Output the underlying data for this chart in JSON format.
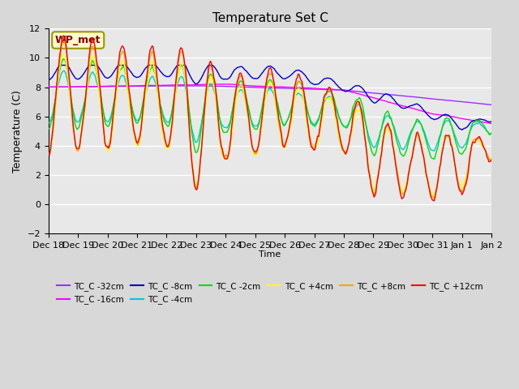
{
  "title": "Temperature Set C",
  "xlabel": "Time",
  "ylabel": "Temperature (C)",
  "ylim": [
    -2,
    12
  ],
  "xtick_labels": [
    "Dec 18",
    "Dec 19",
    "Dec 20",
    "Dec 21",
    "Dec 22",
    "Dec 23",
    "Dec 24",
    "Dec 25",
    "Dec 26",
    "Dec 27",
    "Dec 28",
    "Dec 29",
    "Dec 30",
    "Dec 31",
    "Jan 1",
    "Jan 2"
  ],
  "annotation_text": "WP_met",
  "annotation_color": "#8B0000",
  "annotation_bg": "#FFFACD",
  "annotation_edge": "#999900",
  "series_colors": {
    "TC_C -32cm": "#9B30FF",
    "TC_C -16cm": "#FF00FF",
    "TC_C -8cm": "#0000CC",
    "TC_C -4cm": "#00CCCC",
    "TC_C -2cm": "#00DD00",
    "TC_C +4cm": "#FFFF00",
    "TC_C +8cm": "#FFA500",
    "TC_C +12cm": "#FF0000"
  },
  "plot_bg": "#E8E8E8",
  "n_points": 480,
  "figsize": [
    6.4,
    4.8
  ],
  "dpi": 100
}
